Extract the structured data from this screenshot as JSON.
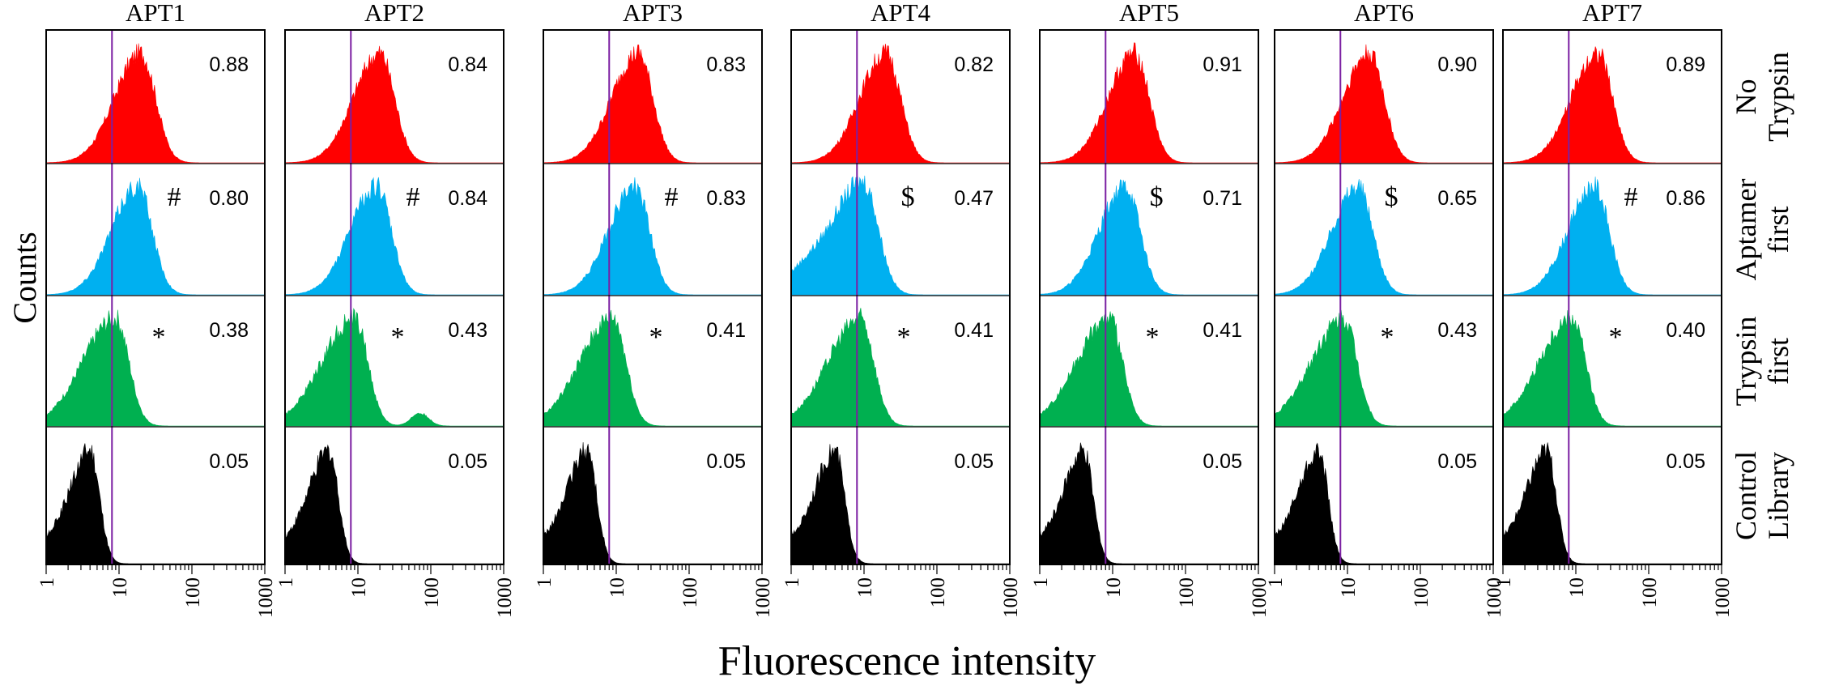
{
  "chart_data": {
    "type": "histogram-grid",
    "xlabel": "Fluorescence intensity",
    "ylabel": "Counts",
    "x_scale": "log",
    "xlim": [
      1,
      1000
    ],
    "x_ticks": [
      "1",
      "10",
      "100",
      "1000"
    ],
    "gate_x": 8,
    "columns": [
      "APT1",
      "APT2",
      "APT3",
      "APT4",
      "APT5",
      "APT6",
      "APT7"
    ],
    "rows": [
      {
        "id": "no_trypsin",
        "label_lines": [
          "No",
          "Trypsin"
        ],
        "color": "#ff0000"
      },
      {
        "id": "aptamer_first",
        "label_lines": [
          "Aptamer",
          "first"
        ],
        "color": "#00b0f0"
      },
      {
        "id": "trypsin_first",
        "label_lines": [
          "Trypsin",
          "first"
        ],
        "color": "#00b050"
      },
      {
        "id": "control_library",
        "label_lines": [
          "Control",
          "Library"
        ],
        "color": "#000000"
      }
    ],
    "values": [
      [
        "0.88",
        "0.84",
        "0.83",
        "0.82",
        "0.91",
        "0.90",
        "0.89"
      ],
      [
        "0.80",
        "0.84",
        "0.83",
        "0.47",
        "0.71",
        "0.65",
        "0.86"
      ],
      [
        "0.38",
        "0.43",
        "0.41",
        "0.41",
        "0.41",
        "0.43",
        "0.40"
      ],
      [
        "0.05",
        "0.05",
        "0.05",
        "0.05",
        "0.05",
        "0.05",
        "0.05"
      ]
    ],
    "symbols": [
      [
        "",
        "",
        "",
        "",
        "",
        "",
        ""
      ],
      [
        "#",
        "#",
        "#",
        "$",
        "$",
        "$",
        "#"
      ],
      [
        "*",
        "*",
        "*",
        "*",
        "*",
        "*",
        "*"
      ],
      [
        "",
        "",
        "",
        "",
        "",
        "",
        ""
      ]
    ],
    "peaks": [
      [
        20,
        20,
        20,
        20,
        20,
        20,
        20
      ],
      [
        18,
        18,
        18,
        10,
        15,
        14,
        18
      ],
      [
        9,
        9,
        9,
        9,
        9,
        9,
        9
      ],
      [
        4,
        4,
        4,
        4,
        4,
        4,
        4
      ]
    ]
  }
}
